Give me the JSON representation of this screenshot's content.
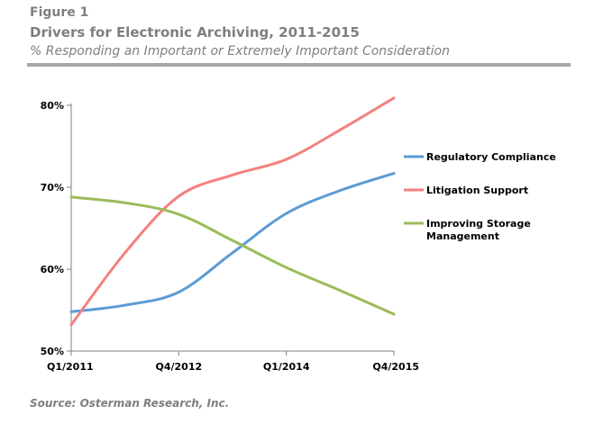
{
  "header": {
    "figure_label": "Figure 1",
    "title": "Drivers for Electronic Archiving, 2011-2015",
    "subtitle": "% Responding an Important or Extremely Important Consideration"
  },
  "source": "Source: Osterman Research, Inc.",
  "chart_data": {
    "type": "line",
    "categories": [
      "Q1/2011",
      "Q4/2012",
      "Q1/2014",
      "Q4/2015"
    ],
    "x_positions": [
      0,
      1,
      2,
      3
    ],
    "ylim": [
      50,
      80
    ],
    "y_ticks": [
      {
        "value": 50,
        "label": "50%"
      },
      {
        "value": 60,
        "label": "60%"
      },
      {
        "value": 70,
        "label": "70%"
      },
      {
        "value": 80,
        "label": "80%"
      }
    ],
    "grid": false,
    "legend_position": "right",
    "series": [
      {
        "name": "Regulatory Compliance",
        "color": "#5b9bd5",
        "points": [
          [
            0,
            54.8
          ],
          [
            0.5,
            55.6
          ],
          [
            1,
            57.2
          ],
          [
            1.5,
            62
          ],
          [
            2,
            66.8
          ],
          [
            2.5,
            69.6
          ],
          [
            3,
            71.7
          ]
        ]
      },
      {
        "name": "Litigation Support",
        "color": "#f4817d",
        "points": [
          [
            0,
            53.2
          ],
          [
            0.5,
            62
          ],
          [
            1,
            68.9
          ],
          [
            1.5,
            71.5
          ],
          [
            2,
            73.4
          ],
          [
            2.5,
            77
          ],
          [
            3,
            80.9
          ]
        ]
      },
      {
        "name_lines": [
          "Improving Storage",
          "Management"
        ],
        "color": "#9bbb59",
        "points": [
          [
            0,
            68.8
          ],
          [
            0.5,
            68.1
          ],
          [
            1,
            66.7
          ],
          [
            1.5,
            63.5
          ],
          [
            2,
            60.2
          ],
          [
            2.5,
            57.4
          ],
          [
            3,
            54.5
          ]
        ]
      }
    ]
  }
}
